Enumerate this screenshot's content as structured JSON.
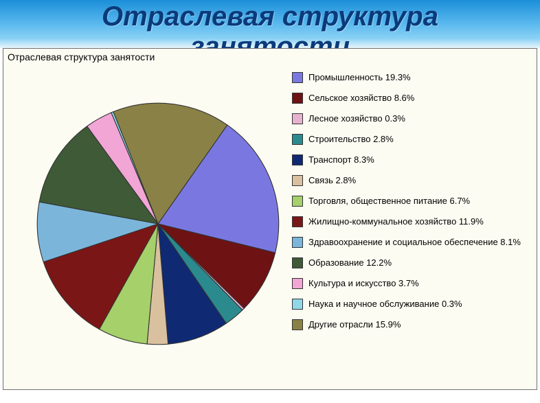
{
  "header": {
    "title_line1": "Отраслевая структура",
    "title_line2": "занятости",
    "title_color": "#0a3a7a",
    "title_fontsize": 40,
    "title_style": "bold italic",
    "bg_gradient_top": "#1b8fd9",
    "bg_gradient_bottom": "#e8f6fd"
  },
  "chart": {
    "type": "pie",
    "title": "Отраслевая структура занятости",
    "title_fontsize": 14,
    "background_color": "#fdfcf3",
    "border_color": "#6f6f6f",
    "pie_stroke": "#333333",
    "slices": [
      {
        "label": "Промышленность",
        "value": 19.3,
        "color": "#7a78e0",
        "percent_text": "19.3%"
      },
      {
        "label": "Сельское хозяйство",
        "value": 8.6,
        "color": "#6e1214",
        "percent_text": "8.6%"
      },
      {
        "label": "Лесное хозяйство",
        "value": 0.3,
        "color": "#e6b3cf",
        "percent_text": "0.3%"
      },
      {
        "label": "Строительство",
        "value": 2.8,
        "color": "#2b8a8e",
        "percent_text": "2.8%"
      },
      {
        "label": "Транспорт",
        "value": 8.3,
        "color": "#0f2a73",
        "percent_text": "8.3%"
      },
      {
        "label": "Связь",
        "value": 2.8,
        "color": "#d9c1a0",
        "percent_text": "2.8%"
      },
      {
        "label": "Торговля, общественное питание",
        "value": 6.7,
        "color": "#a5d06a",
        "percent_text": "6.7%"
      },
      {
        "label": "Жилищно-коммунальное хозяйство",
        "value": 11.9,
        "color": "#7b1616",
        "percent_text": "11.9%"
      },
      {
        "label": "Здравоохранение и социальное обеспечение",
        "value": 8.1,
        "color": "#7bb6da",
        "percent_text": "8.1%"
      },
      {
        "label": "Образование",
        "value": 12.2,
        "color": "#3e5a36",
        "percent_text": "12.2%"
      },
      {
        "label": "Культура и искусство",
        "value": 3.7,
        "color": "#f1a6d6",
        "percent_text": "3.7%"
      },
      {
        "label": "Наука и научное обслуживание",
        "value": 0.3,
        "color": "#8fd8e8",
        "percent_text": "0.3%"
      },
      {
        "label": "Другие отрасли",
        "value": 15.9,
        "color": "#8a8146",
        "percent_text": "15.9%"
      }
    ],
    "legend": {
      "fontsize": 13,
      "swatch_size": 14,
      "swatch_border": "#333333"
    }
  }
}
